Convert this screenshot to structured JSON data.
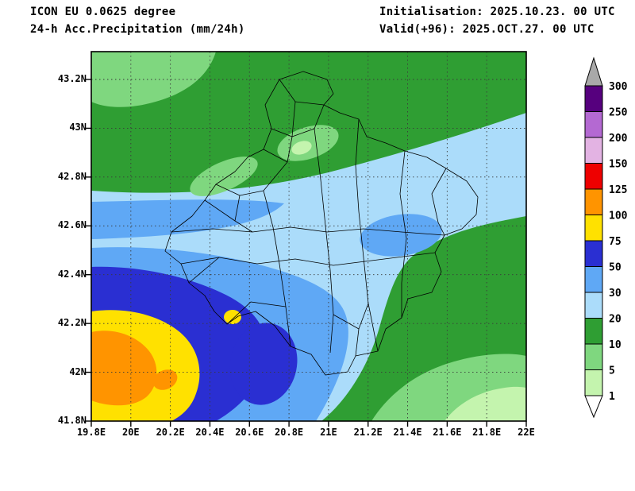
{
  "header": {
    "model_line": "ICON EU 0.0625 degree",
    "product_line": "24-h Acc.Precipitation (mm/24h)",
    "init_line": "Initialisation: 2025.10.23. 00 UTC",
    "valid_line": "Valid(+96): 2025.OCT.27. 00 UTC"
  },
  "axes": {
    "x_ticks": [
      "19.8E",
      "20E",
      "20.2E",
      "20.4E",
      "20.6E",
      "20.8E",
      "21E",
      "21.2E",
      "21.4E",
      "21.6E",
      "21.8E",
      "22E"
    ],
    "y_ticks": [
      "43.2N",
      "43N",
      "42.8N",
      "42.6N",
      "42.4N",
      "42.2N",
      "42N",
      "41.8N"
    ]
  },
  "colorbar": {
    "unit": "mm/24h",
    "levels": [
      300,
      250,
      200,
      150,
      125,
      100,
      75,
      50,
      30,
      20,
      10,
      5,
      1
    ],
    "bands": [
      {
        "range": "250-300",
        "color": "#56007e"
      },
      {
        "range": "200-250",
        "color": "#b469d2"
      },
      {
        "range": "150-200",
        "color": "#e3b3e3"
      },
      {
        "range": "125-150",
        "color": "#ee0000"
      },
      {
        "range": "100-125",
        "color": "#ff9400"
      },
      {
        "range": "75-100",
        "color": "#ffe100"
      },
      {
        "range": "50-75",
        "color": "#2a2fd2"
      },
      {
        "range": "30-50",
        "color": "#5fa8f5"
      },
      {
        "range": "20-30",
        "color": "#abdcfa"
      },
      {
        "range": "10-20",
        "color": "#2f9e33"
      },
      {
        "range": "5-10",
        "color": "#7fd77f"
      },
      {
        "range": "1-5",
        "color": "#c4f4ae"
      }
    ],
    "over_color": "#a9a9a9",
    "under_color": "#ffffff"
  },
  "chart_data": {
    "type": "heatmap",
    "title": "24-h Acc.Precipitation (mm/24h)",
    "x_ticks": [
      "19.8E",
      "20E",
      "20.2E",
      "20.4E",
      "20.6E",
      "20.8E",
      "21E",
      "21.2E",
      "21.4E",
      "21.6E",
      "21.8E",
      "22E"
    ],
    "y_ticks": [
      "43.2N",
      "43N",
      "42.8N",
      "42.6N",
      "42.4N",
      "42.2N",
      "42N",
      "41.8N"
    ],
    "xlim": [
      "19.8E",
      "22E"
    ],
    "ylim": [
      "41.8N",
      "43.3N"
    ],
    "legend_position": "right",
    "grid": "dashed",
    "contour_levels_mm": [
      1,
      5,
      10,
      20,
      30,
      50,
      75,
      100,
      125,
      150,
      200,
      250,
      300
    ],
    "field_summary": "Background 10-20mm green over region; light-blue 20-30mm band across center; 30-50mm and 50-75mm blues over SW; yellow 75-100mm and orange 100-125mm maximum in far SW corner; 5-10mm and 1-5mm greens in NW and SE corners"
  }
}
